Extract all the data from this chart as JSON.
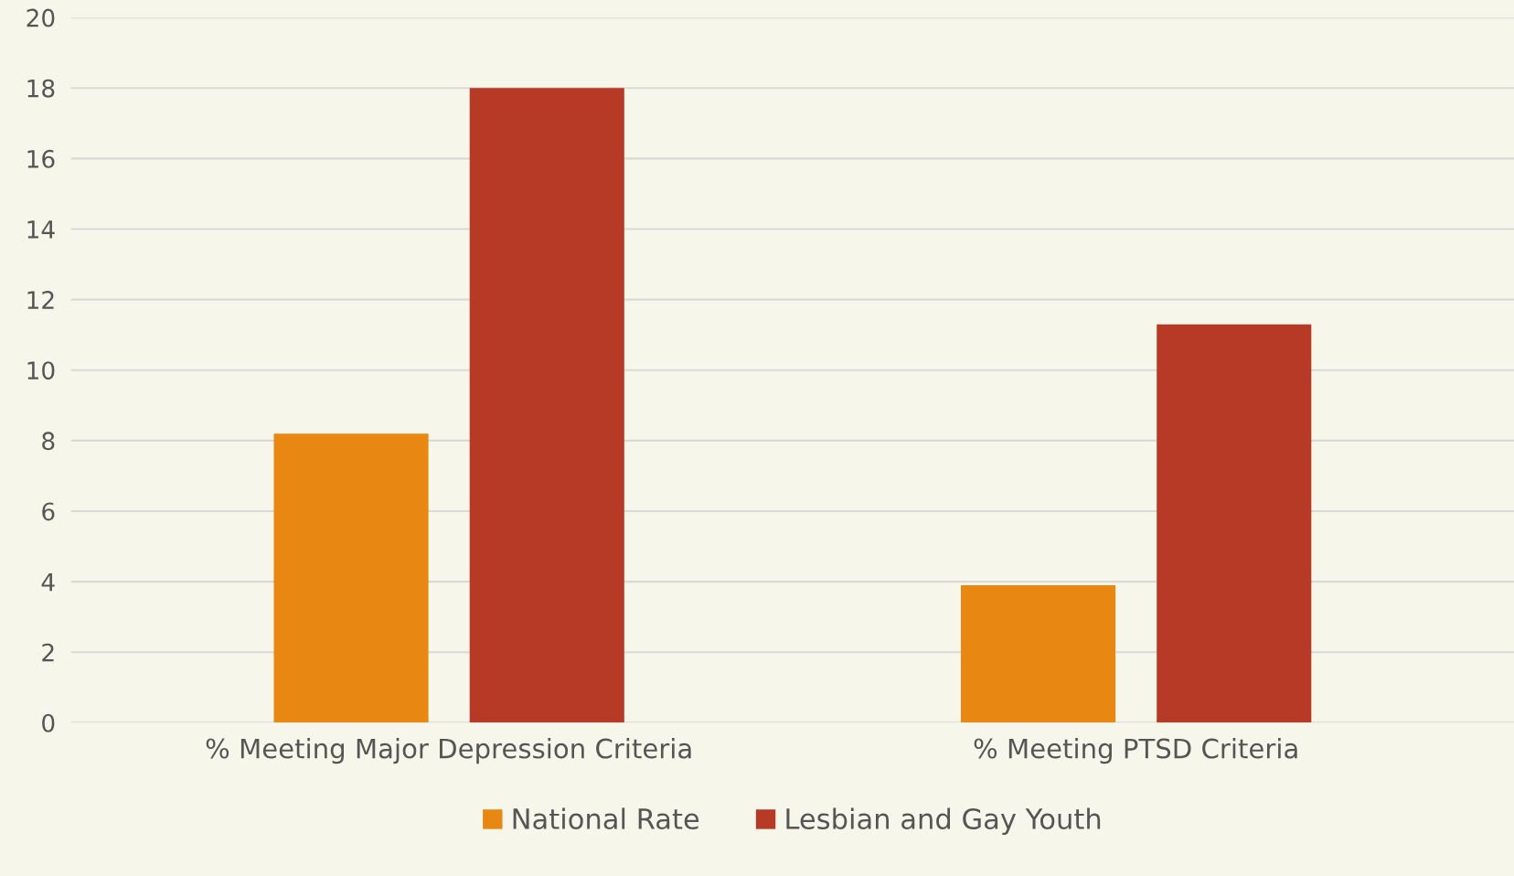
{
  "chart_data": {
    "type": "bar",
    "categories": [
      "% Meeting Major Depression Criteria",
      "% Meeting PTSD Criteria"
    ],
    "series": [
      {
        "name": "National Rate",
        "color": "#e88712",
        "values": [
          8.2,
          3.9
        ]
      },
      {
        "name": "Lesbian and Gay Youth",
        "color": "#b73a26",
        "values": [
          18,
          11.3
        ]
      }
    ],
    "ylim": [
      0,
      20
    ],
    "yticks": [
      0,
      2,
      4,
      6,
      8,
      10,
      12,
      14,
      16,
      18,
      20
    ],
    "grid": "y",
    "legend": "bottom"
  }
}
